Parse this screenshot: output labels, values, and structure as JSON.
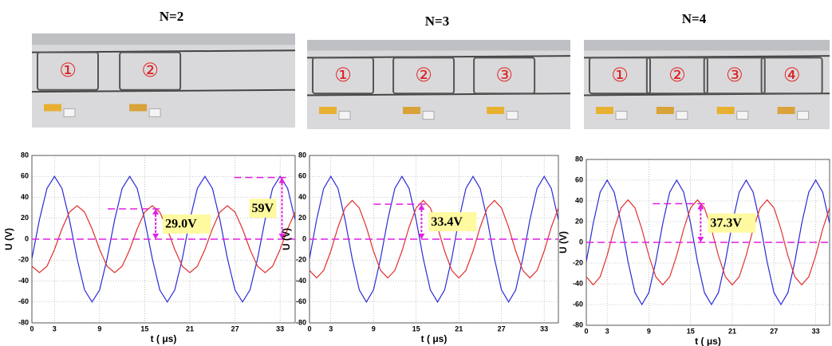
{
  "photos": [
    [
      "①",
      "②"
    ],
    [
      "①",
      "②",
      "③"
    ],
    [
      "①",
      "②",
      "③",
      "④"
    ]
  ],
  "chart_data": [
    {
      "type": "line",
      "title": "N=2",
      "xlabel": "t ( μs)",
      "ylabel": "U (V)",
      "x": [
        0,
        1,
        2,
        3,
        4,
        5,
        6,
        7,
        8,
        9,
        10,
        11,
        12,
        13,
        14,
        15,
        16,
        17,
        18,
        19,
        20,
        21,
        22,
        23,
        24,
        25,
        26,
        27,
        28,
        29,
        30,
        31,
        32,
        33,
        34,
        35
      ],
      "series": [
        {
          "color": "#2a2ad6",
          "values": [
            -18.5,
            18.5,
            48.5,
            60,
            48.5,
            18.5,
            -18.5,
            -48.5,
            -60,
            -48.5,
            -18.5,
            18.5,
            48.5,
            60,
            48.5,
            18.5,
            -18.5,
            -48.5,
            -60,
            -48.5,
            -18.5,
            18.5,
            48.5,
            60,
            48.5,
            18.5,
            -18.5,
            -48.5,
            -60,
            -48.5,
            -18.5,
            18.5,
            48.5,
            60,
            48.5,
            18.5
          ]
        },
        {
          "color": "#e03030",
          "values": [
            -25.9,
            -32,
            -25.9,
            -9.9,
            9.9,
            25.9,
            32,
            25.9,
            9.9,
            -9.9,
            -25.9,
            -32,
            -25.9,
            -9.9,
            9.9,
            25.9,
            32,
            25.9,
            9.9,
            -9.9,
            -25.9,
            -32,
            -25.9,
            -9.9,
            9.9,
            25.9,
            32,
            25.9,
            9.9,
            -9.9,
            -25.9,
            -32,
            -25.9,
            -9.9,
            9.9,
            25.9
          ]
        }
      ],
      "xlim": [
        0,
        35
      ],
      "ylim": [
        -80,
        80
      ],
      "xticks": [
        0,
        3,
        9,
        15,
        21,
        27,
        33
      ],
      "yticks": [
        -80,
        -60,
        -40,
        -20,
        0,
        20,
        40,
        60,
        80
      ],
      "grid": true,
      "annotations": [
        {
          "label": "29.0V",
          "value": 29.0
        },
        {
          "label": "59V",
          "value": 59
        }
      ]
    },
    {
      "type": "line",
      "title": "N=3",
      "xlabel": "t ( μs)",
      "ylabel": "U (V)",
      "x": [
        0,
        1,
        2,
        3,
        4,
        5,
        6,
        7,
        8,
        9,
        10,
        11,
        12,
        13,
        14,
        15,
        16,
        17,
        18,
        19,
        20,
        21,
        22,
        23,
        24,
        25,
        26,
        27,
        28,
        29,
        30,
        31,
        32,
        33,
        34,
        35
      ],
      "series": [
        {
          "color": "#2a2ad6",
          "values": [
            -18.5,
            18.5,
            48.5,
            60,
            48.5,
            18.5,
            -18.5,
            -48.5,
            -60,
            -48.5,
            -18.5,
            18.5,
            48.5,
            60,
            48.5,
            18.5,
            -18.5,
            -48.5,
            -60,
            -48.5,
            -18.5,
            18.5,
            48.5,
            60,
            48.5,
            18.5,
            -18.5,
            -48.5,
            -60,
            -48.5,
            -18.5,
            18.5,
            48.5,
            60,
            48.5,
            18.5
          ]
        },
        {
          "color": "#e03030",
          "values": [
            -29.9,
            -37,
            -29.9,
            -11.4,
            11.4,
            29.9,
            37,
            29.9,
            11.4,
            -11.4,
            -29.9,
            -37,
            -29.9,
            -11.4,
            11.4,
            29.9,
            37,
            29.9,
            11.4,
            -11.4,
            -29.9,
            -37,
            -29.9,
            -11.4,
            11.4,
            29.9,
            37,
            29.9,
            11.4,
            -11.4,
            -29.9,
            -37,
            -29.9,
            -11.4,
            11.4,
            29.9
          ]
        }
      ],
      "xlim": [
        0,
        35
      ],
      "ylim": [
        -80,
        80
      ],
      "xticks": [
        0,
        3,
        9,
        15,
        21,
        27,
        33
      ],
      "yticks": [
        -80,
        -60,
        -40,
        -20,
        0,
        20,
        40,
        60,
        80
      ],
      "grid": true,
      "annotations": [
        {
          "label": "33.4V",
          "value": 33.4
        }
      ]
    },
    {
      "type": "line",
      "title": "N=4",
      "xlabel": "t ( μs)",
      "ylabel": "U (V)",
      "x": [
        0,
        1,
        2,
        3,
        4,
        5,
        6,
        7,
        8,
        9,
        10,
        11,
        12,
        13,
        14,
        15,
        16,
        17,
        18,
        19,
        20,
        21,
        22,
        23,
        24,
        25,
        26,
        27,
        28,
        29,
        30,
        31,
        32,
        33,
        34,
        35
      ],
      "series": [
        {
          "color": "#2a2ad6",
          "values": [
            -18.5,
            18.5,
            48.5,
            60,
            48.5,
            18.5,
            -18.5,
            -48.5,
            -60,
            -48.5,
            -18.5,
            18.5,
            48.5,
            60,
            48.5,
            18.5,
            -18.5,
            -48.5,
            -60,
            -48.5,
            -18.5,
            18.5,
            48.5,
            60,
            48.5,
            18.5,
            -18.5,
            -48.5,
            -60,
            -48.5,
            -18.5,
            18.5,
            48.5,
            60,
            48.5,
            18.5
          ]
        },
        {
          "color": "#e03030",
          "values": [
            -33.2,
            -41,
            -33.2,
            -12.7,
            12.7,
            33.2,
            41,
            33.2,
            12.7,
            -12.7,
            -33.2,
            -41,
            -33.2,
            -12.7,
            12.7,
            33.2,
            41,
            33.2,
            12.7,
            -12.7,
            -33.2,
            -41,
            -33.2,
            -12.7,
            12.7,
            33.2,
            41,
            33.2,
            12.7,
            -12.7,
            -33.2,
            -41,
            -33.2,
            -12.7,
            12.7,
            33.2
          ]
        }
      ],
      "xlim": [
        0,
        35
      ],
      "ylim": [
        -80,
        80
      ],
      "xticks": [
        0,
        3,
        9,
        15,
        21,
        27,
        33
      ],
      "yticks": [
        -80,
        -60,
        -40,
        -20,
        0,
        20,
        40,
        60,
        80
      ],
      "grid": true,
      "annotations": [
        {
          "label": "37.3V",
          "value": 37.3
        }
      ]
    }
  ]
}
